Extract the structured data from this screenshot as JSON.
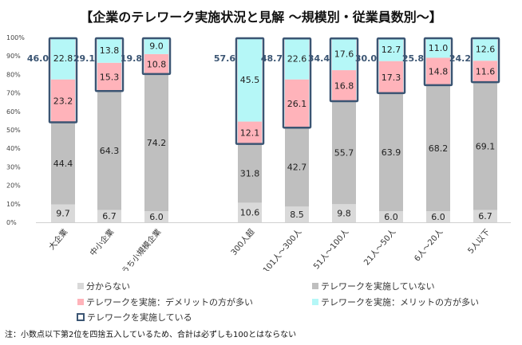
{
  "title": "【企業のテレワーク実施状況と見解 ～規模別・従業員数別～】",
  "note": "注：小数点以下第2位を四捨五入しているため、合計は必ずしも100とはならない",
  "chart_data": {
    "type": "bar",
    "stacked": true,
    "title": "【企業のテレワーク実施状況と見解 ～規模別・従業員数別～】",
    "ylim": [
      0,
      100
    ],
    "yticks": [
      "0%",
      "10%",
      "20%",
      "30%",
      "40%",
      "50%",
      "60%",
      "70%",
      "80%",
      "90%",
      "100%"
    ],
    "grid": false,
    "legend_position": "bottom",
    "categories": [
      "大企業",
      "中小企業",
      "うち小規模企業",
      "300人超",
      "101人～300人",
      "51人～100人",
      "21人～50人",
      "6人～20人",
      "5人以下"
    ],
    "series": [
      {
        "name": "分からない",
        "color": "#d9d9d9",
        "values": [
          9.7,
          6.7,
          6.0,
          10.6,
          8.5,
          9.8,
          6.0,
          6.0,
          6.7
        ]
      },
      {
        "name": "テレワークを実施していない",
        "color": "#bfbfbf",
        "values": [
          44.4,
          64.3,
          74.2,
          31.8,
          42.7,
          55.7,
          63.9,
          68.2,
          69.1
        ]
      },
      {
        "name": "テレワークを実施：デメリットの方が多い",
        "color": "#ffb3ba",
        "values": [
          23.2,
          15.3,
          10.8,
          12.1,
          26.1,
          16.8,
          17.3,
          14.8,
          11.6
        ]
      },
      {
        "name": "テレワークを実施：メリットの方が多い",
        "color": "#b5f7f7",
        "values": [
          22.8,
          13.8,
          9.0,
          45.5,
          22.6,
          17.6,
          12.7,
          11.0,
          12.6
        ]
      }
    ],
    "outline_series": {
      "name": "テレワークを実施している",
      "color": "#3b5573",
      "values": [
        46.0,
        29.1,
        19.8,
        57.6,
        48.7,
        34.4,
        30.0,
        25.8,
        24.2
      ]
    }
  }
}
